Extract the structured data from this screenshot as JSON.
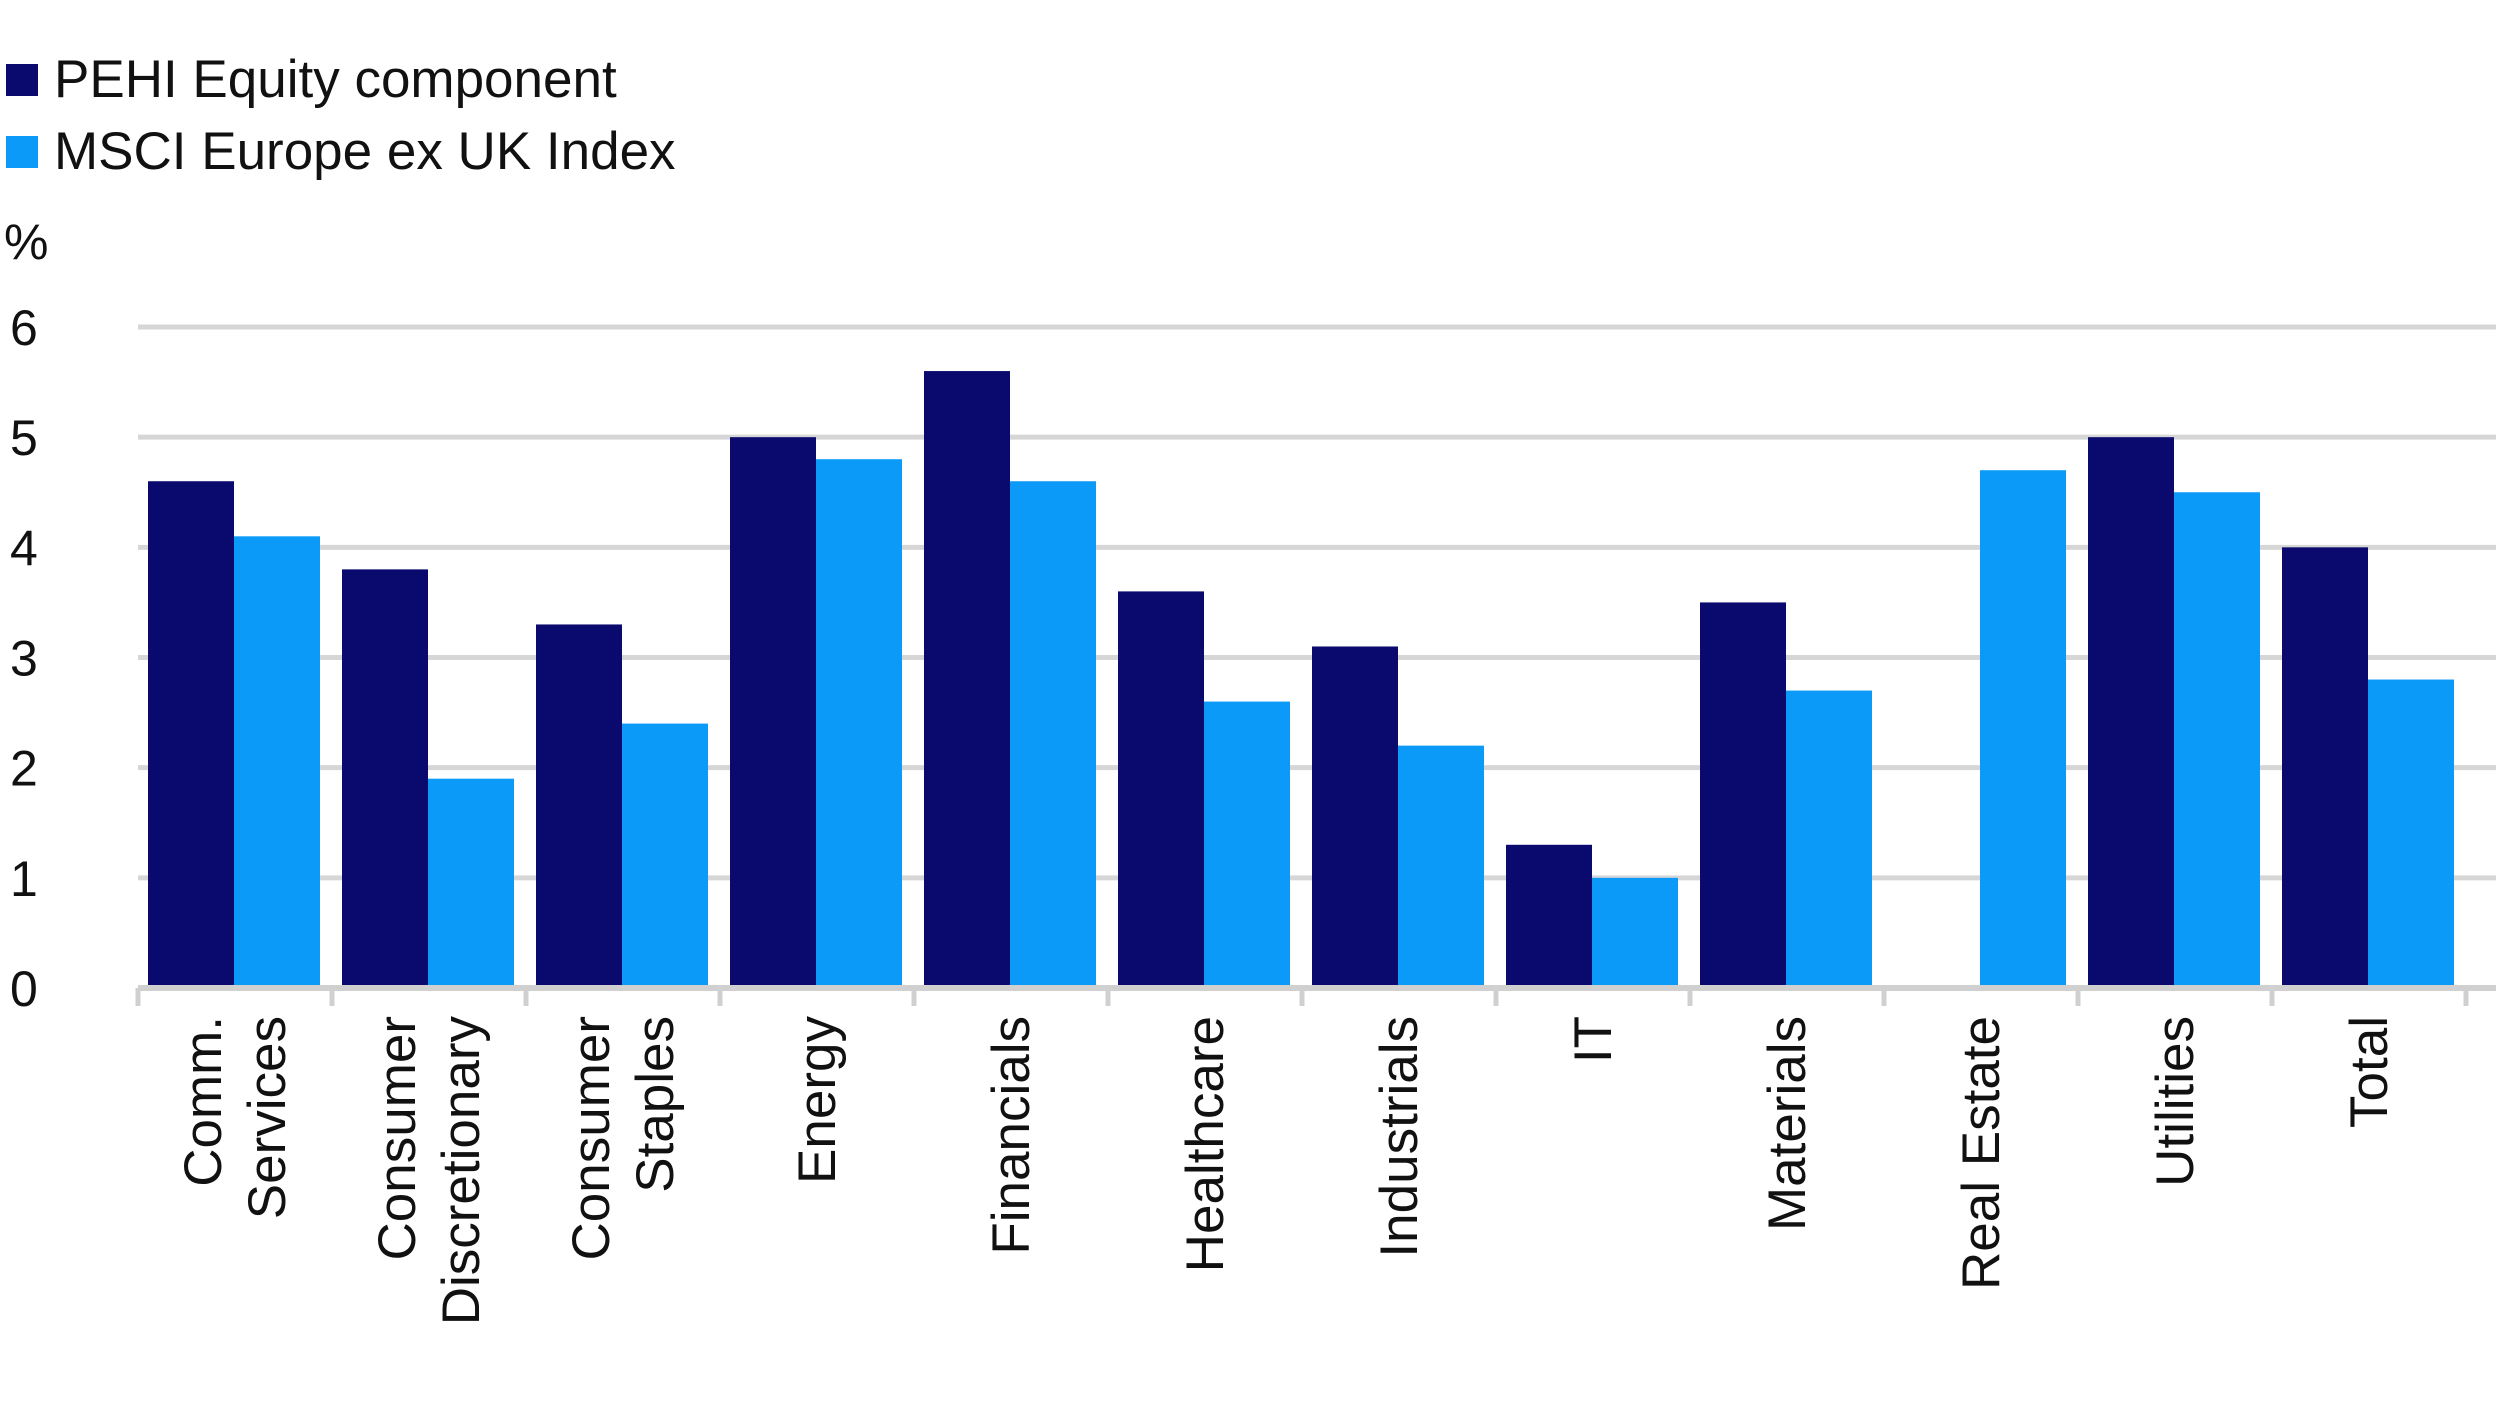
{
  "chart_data": {
    "type": "bar",
    "unit_label": "%",
    "categories": [
      [
        "Comm.",
        "Services"
      ],
      [
        "Consumer",
        "Discretionary"
      ],
      [
        "Consumer",
        "Staples"
      ],
      [
        "Energy"
      ],
      [
        "Financials"
      ],
      [
        "Healthcare"
      ],
      [
        "Industrials"
      ],
      [
        "IT"
      ],
      [
        "Materials"
      ],
      [
        "Real Estate"
      ],
      [
        "Utilities"
      ],
      [
        "Total"
      ]
    ],
    "series": [
      {
        "name": "PEHI Equity component",
        "color": "#0a0a6e",
        "values": [
          4.6,
          3.8,
          3.3,
          5.0,
          5.6,
          3.6,
          3.1,
          1.3,
          3.5,
          null,
          5.0,
          4.0
        ]
      },
      {
        "name": "MSCI Europe ex UK Index",
        "color": "#0c9af8",
        "values": [
          4.1,
          1.9,
          2.4,
          4.8,
          4.6,
          2.6,
          2.2,
          1.0,
          2.7,
          4.7,
          4.5,
          2.8
        ]
      }
    ],
    "ylim": [
      0,
      6
    ],
    "yticks": [
      "0",
      "1",
      "2",
      "3",
      "4",
      "5",
      "6"
    ],
    "grid": true,
    "legend_position": "top-left",
    "gridline_color": "#d6d6d6",
    "axis_color": "#d0d0d0"
  }
}
